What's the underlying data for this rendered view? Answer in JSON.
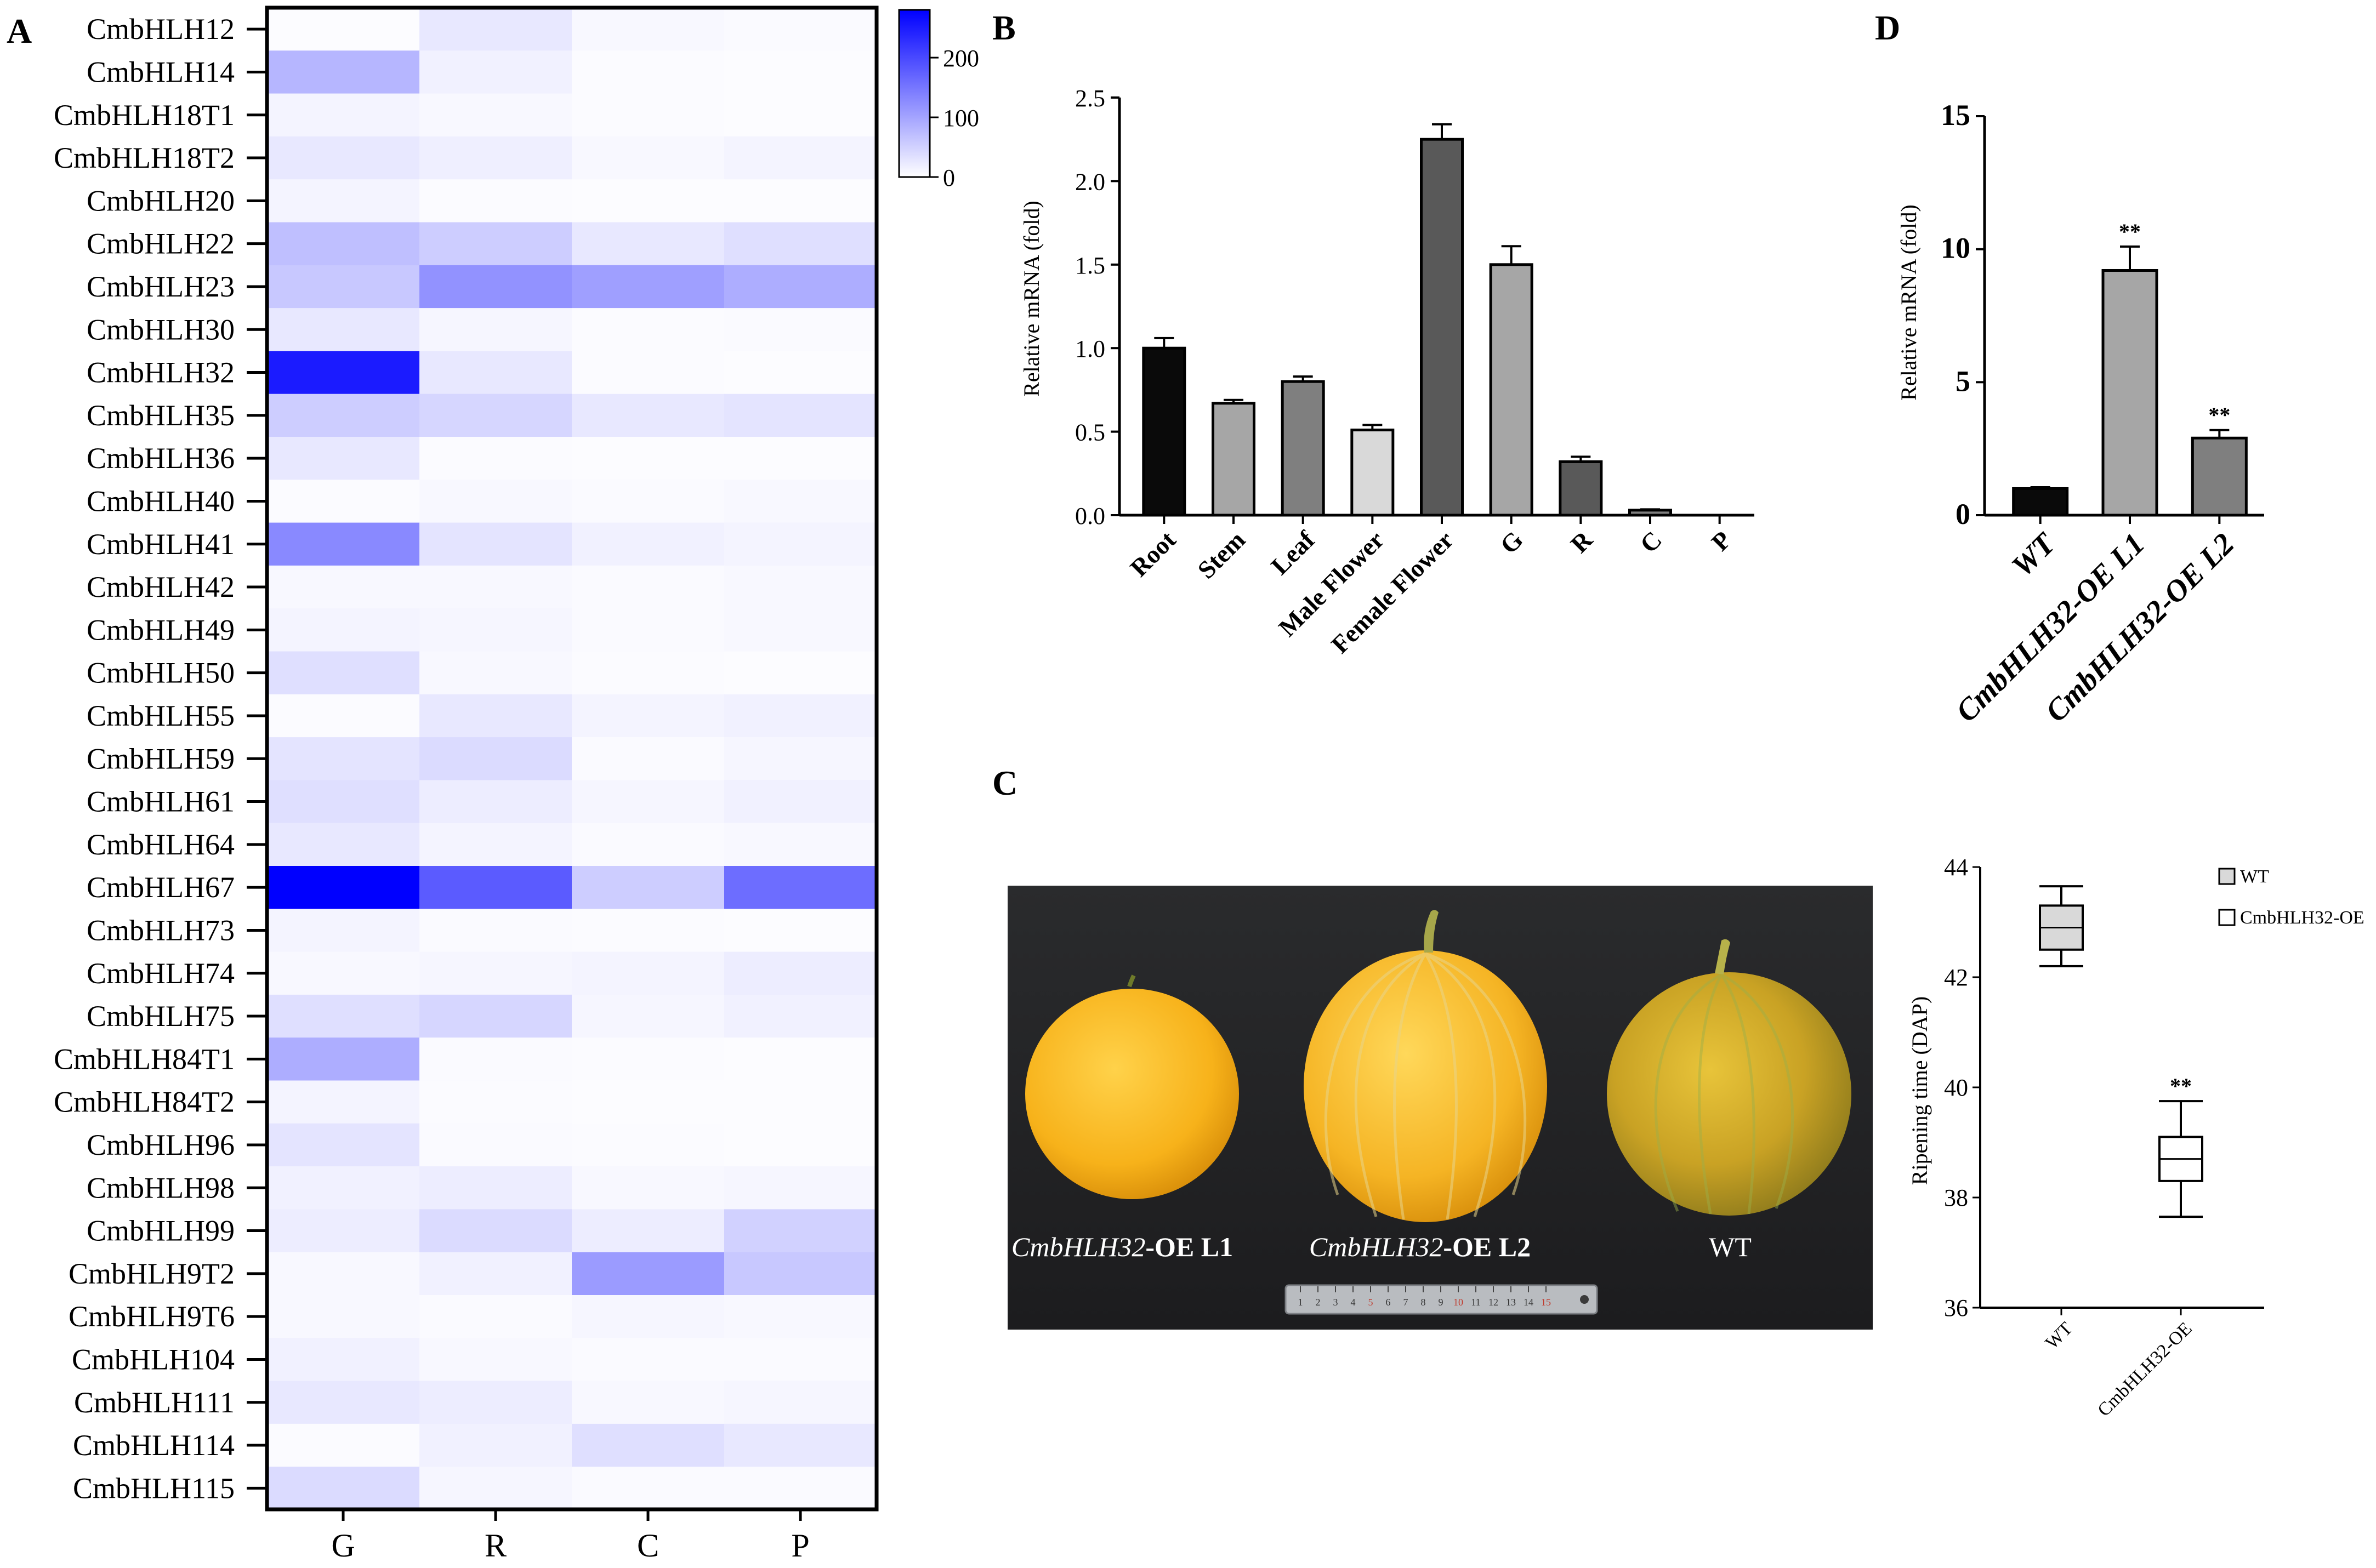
{
  "panels": {
    "a": "A",
    "b": "B",
    "c": "C",
    "d": "D"
  },
  "heatmap": {
    "columns": [
      "G",
      "R",
      "C",
      "P"
    ],
    "colorbar": {
      "max": 280,
      "ticks": [
        200,
        100,
        0
      ],
      "low_color": "#ffffff",
      "high_color": "#0000ff"
    },
    "rows": [
      {
        "label": "CmbHLH12",
        "values": [
          3,
          25,
          8,
          6
        ]
      },
      {
        "label": "CmbHLH14",
        "values": [
          80,
          15,
          4,
          3
        ]
      },
      {
        "label": "CmbHLH18T1",
        "values": [
          12,
          8,
          4,
          3
        ]
      },
      {
        "label": "CmbHLH18T2",
        "values": [
          25,
          18,
          8,
          12
        ]
      },
      {
        "label": "CmbHLH20",
        "values": [
          12,
          4,
          3,
          3
        ]
      },
      {
        "label": "CmbHLH22",
        "values": [
          70,
          55,
          25,
          35
        ]
      },
      {
        "label": "CmbHLH23",
        "values": [
          60,
          120,
          105,
          90
        ]
      },
      {
        "label": "CmbHLH30",
        "values": [
          25,
          10,
          4,
          6
        ]
      },
      {
        "label": "CmbHLH32",
        "values": [
          250,
          25,
          4,
          3
        ]
      },
      {
        "label": "CmbHLH35",
        "values": [
          55,
          45,
          25,
          30
        ]
      },
      {
        "label": "CmbHLH36",
        "values": [
          25,
          4,
          3,
          3
        ]
      },
      {
        "label": "CmbHLH40",
        "values": [
          4,
          8,
          6,
          8
        ]
      },
      {
        "label": "CmbHLH41",
        "values": [
          130,
          30,
          15,
          12
        ]
      },
      {
        "label": "CmbHLH42",
        "values": [
          8,
          8,
          6,
          8
        ]
      },
      {
        "label": "CmbHLH49",
        "values": [
          12,
          10,
          6,
          8
        ]
      },
      {
        "label": "CmbHLH50",
        "values": [
          35,
          8,
          4,
          3
        ]
      },
      {
        "label": "CmbHLH55",
        "values": [
          4,
          25,
          12,
          15
        ]
      },
      {
        "label": "CmbHLH59",
        "values": [
          30,
          40,
          6,
          10
        ]
      },
      {
        "label": "CmbHLH61",
        "values": [
          35,
          20,
          10,
          15
        ]
      },
      {
        "label": "CmbHLH64",
        "values": [
          25,
          12,
          6,
          8
        ]
      },
      {
        "label": "CmbHLH67",
        "values": [
          280,
          180,
          55,
          160
        ]
      },
      {
        "label": "CmbHLH73",
        "values": [
          12,
          6,
          4,
          3
        ]
      },
      {
        "label": "CmbHLH74",
        "values": [
          8,
          10,
          12,
          20
        ]
      },
      {
        "label": "CmbHLH75",
        "values": [
          35,
          45,
          10,
          15
        ]
      },
      {
        "label": "CmbHLH84T1",
        "values": [
          90,
          6,
          4,
          3
        ]
      },
      {
        "label": "CmbHLH84T2",
        "values": [
          12,
          4,
          3,
          3
        ]
      },
      {
        "label": "CmbHLH96",
        "values": [
          30,
          6,
          4,
          3
        ]
      },
      {
        "label": "CmbHLH98",
        "values": [
          15,
          20,
          8,
          10
        ]
      },
      {
        "label": "CmbHLH99",
        "values": [
          20,
          40,
          20,
          50
        ]
      },
      {
        "label": "CmbHLH9T2",
        "values": [
          8,
          15,
          110,
          60
        ]
      },
      {
        "label": "CmbHLH9T6",
        "values": [
          8,
          6,
          10,
          8
        ]
      },
      {
        "label": "CmbHLH104",
        "values": [
          15,
          8,
          6,
          6
        ]
      },
      {
        "label": "CmbHLH111",
        "values": [
          25,
          20,
          8,
          10
        ]
      },
      {
        "label": "CmbHLH114",
        "values": [
          4,
          15,
          35,
          25
        ]
      },
      {
        "label": "CmbHLH115",
        "values": [
          40,
          10,
          6,
          6
        ]
      }
    ]
  },
  "chart_data": [
    {
      "type": "bar",
      "panel": "B",
      "ylabel": "Relative mRNA (fold)",
      "ylim": [
        0,
        2.5
      ],
      "yticks": [
        "0.0",
        "0.5",
        "1.0",
        "1.5",
        "2.0",
        "2.5"
      ],
      "categories": [
        "Root",
        "Stem",
        "Leaf",
        "Male Flower",
        "Female Flower",
        "G",
        "R",
        "C",
        "P"
      ],
      "values": [
        1.0,
        0.67,
        0.8,
        0.51,
        2.25,
        1.5,
        0.32,
        0.03,
        0.0
      ],
      "errors": [
        0.06,
        0.02,
        0.03,
        0.03,
        0.09,
        0.11,
        0.03,
        0.005,
        0.0
      ],
      "colors": [
        "#0a0a0a",
        "#a6a6a6",
        "#7f7f7f",
        "#d9d9d9",
        "#595959",
        "#a6a6a6",
        "#595959",
        "#7f7f7f",
        "#d9d9d9"
      ]
    },
    {
      "type": "bar",
      "panel": "D",
      "ylabel": "Relative mRNA (fold)",
      "ylim": [
        0,
        15
      ],
      "yticks": [
        "0",
        "5",
        "10",
        "15"
      ],
      "categories": [
        "WT",
        "CmbHLH32-OE L1",
        "CmbHLH32-OE L2"
      ],
      "values": [
        1.0,
        9.2,
        2.9
      ],
      "errors": [
        0.05,
        0.9,
        0.3
      ],
      "significance": [
        "",
        "**",
        "**"
      ],
      "colors": [
        "#0a0a0a",
        "#a6a6a6",
        "#7f7f7f"
      ]
    },
    {
      "type": "box",
      "panel": "C",
      "ylabel": "Ripening time (DAP)",
      "ylim": [
        36,
        44
      ],
      "yticks": [
        "36",
        "38",
        "40",
        "42",
        "44"
      ],
      "categories": [
        "WT",
        "CmbHLH32-OE"
      ],
      "boxes": [
        {
          "min": 42.2,
          "q1": 42.5,
          "median": 42.9,
          "q3": 43.3,
          "max": 43.65
        },
        {
          "min": 37.65,
          "q1": 38.3,
          "median": 38.7,
          "q3": 39.1,
          "max": 39.75
        }
      ],
      "significance": [
        "",
        "**"
      ],
      "legend": [
        "WT",
        "CmbHLH32-OE"
      ],
      "legend_position": "top-right",
      "box_colors": [
        "#d9d9d9",
        "#ffffff"
      ]
    }
  ],
  "photo": {
    "labels": [
      {
        "italic": "CmbHLH32",
        "rest": "-OE L1"
      },
      {
        "italic": "CmbHLH32",
        "rest": "-OE L2"
      },
      {
        "italic": "",
        "rest": "WT"
      }
    ],
    "ruler_numbers": [
      "1",
      "2",
      "3",
      "4",
      "5",
      "6",
      "7",
      "8",
      "9",
      "10",
      "11",
      "12",
      "13",
      "14",
      "15"
    ]
  }
}
